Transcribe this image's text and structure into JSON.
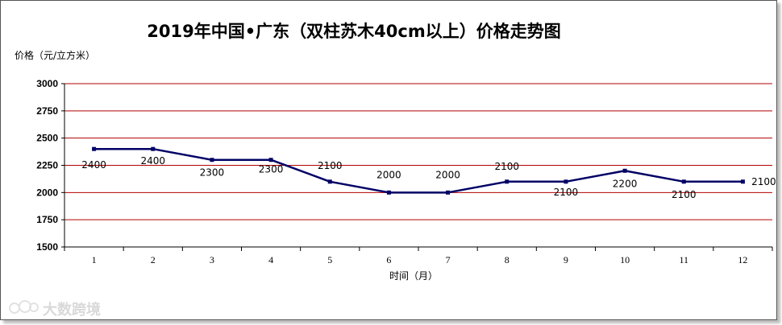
{
  "chart_data": {
    "type": "line",
    "title": "2019年中国•广东（双柱苏木40cm以上）价格走势图",
    "ylabel": "价格（元/立方米）",
    "xlabel": "时间（月）",
    "categories": [
      "1",
      "2",
      "3",
      "4",
      "5",
      "6",
      "7",
      "8",
      "9",
      "10",
      "11",
      "12"
    ],
    "series": [
      {
        "values": [
          2400,
          2400,
          2300,
          2300,
          2100,
          2000,
          2000,
          2100,
          2100,
          2200,
          2100,
          2100
        ]
      }
    ],
    "data_labels": [
      "2400",
      "2400",
      "2300",
      "2300",
      "2100",
      "2000",
      "2000",
      "2100",
      "2100",
      "2200",
      "2100",
      "2100"
    ],
    "ylim": [
      1500,
      3000
    ],
    "yticks": [
      1500,
      1750,
      2000,
      2250,
      2500,
      2750,
      3000
    ],
    "grid": true,
    "colors": {
      "line": "#000066",
      "grid": "#b30000"
    }
  },
  "watermark": {
    "text": "大数跨境"
  }
}
